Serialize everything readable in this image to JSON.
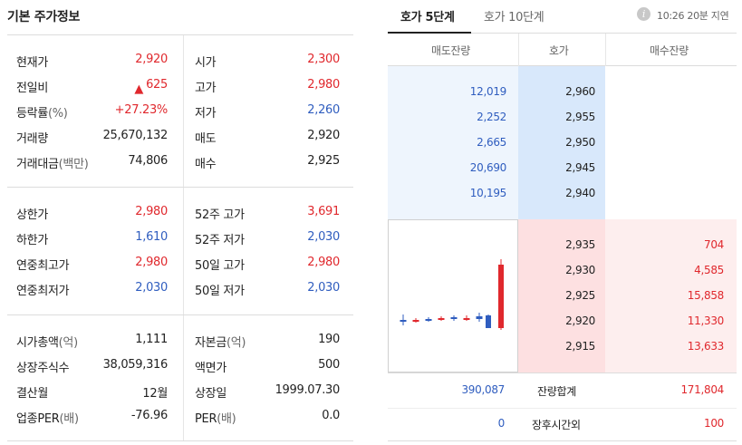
{
  "basic": {
    "title": "기본 주가정보",
    "block1": [
      {
        "k1": "현재가",
        "k1_sub": "",
        "v1": "2,920",
        "c1": "red",
        "k2": "시가",
        "v2": "2,300",
        "c2": "red"
      },
      {
        "k1": "전일비",
        "k1_sub": "",
        "v1": "625",
        "c1": "red",
        "arrow": "▲",
        "k2": "고가",
        "v2": "2,980",
        "c2": "red"
      },
      {
        "k1": "등락률",
        "k1_sub": "(%)",
        "v1": "+27.23%",
        "c1": "red",
        "k2": "저가",
        "v2": "2,260",
        "c2": "blue"
      },
      {
        "k1": "거래량",
        "k1_sub": "",
        "v1": "25,670,132",
        "c1": "black",
        "k2": "매도",
        "v2": "2,920",
        "c2": "black"
      },
      {
        "k1": "거래대금",
        "k1_sub": "(백만)",
        "v1": "74,806",
        "c1": "black",
        "k2": "매수",
        "v2": "2,925",
        "c2": "black"
      }
    ],
    "block2": [
      {
        "k1": "상한가",
        "k1_sub": "",
        "v1": "2,980",
        "c1": "red",
        "k2": "52주 고가",
        "v2": "3,691",
        "c2": "red"
      },
      {
        "k1": "하한가",
        "k1_sub": "",
        "v1": "1,610",
        "c1": "blue",
        "k2": "52주 저가",
        "v2": "2,030",
        "c2": "blue"
      },
      {
        "k1": "연중최고가",
        "k1_sub": "",
        "v1": "2,980",
        "c1": "red",
        "k2": "50일 고가",
        "v2": "2,980",
        "c2": "red"
      },
      {
        "k1": "연중최저가",
        "k1_sub": "",
        "v1": "2,030",
        "c1": "blue",
        "k2": "50일 저가",
        "v2": "2,030",
        "c2": "blue"
      }
    ],
    "block3": [
      {
        "k1": "시가총액",
        "k1_sub": "(억)",
        "v1": "1,111",
        "c1": "black",
        "k2": "자본금",
        "k2_sub": "(억)",
        "v2": "190",
        "c2": "black"
      },
      {
        "k1": "상장주식수",
        "k1_sub": "",
        "v1": "38,059,316",
        "c1": "black",
        "k2": "액면가",
        "k2_sub": "",
        "v2": "500",
        "c2": "black"
      },
      {
        "k1": "결산월",
        "k1_sub": "",
        "v1": "12월",
        "c1": "black",
        "k2": "상장일",
        "k2_sub": "",
        "v2": "1999.07.30",
        "c2": "black"
      },
      {
        "k1": "업종PER",
        "k1_sub": "(배)",
        "v1": "-76.96",
        "c1": "black",
        "k2": "PER",
        "k2_sub": "(배)",
        "v2": "0.0",
        "c2": "black"
      }
    ]
  },
  "orderbook": {
    "tabs": [
      "호가 5단계",
      "호가 10단계"
    ],
    "info_icon": "info-icon",
    "delay": "10:26 20분 지연",
    "headers": {
      "sell": "매도잔량",
      "price": "호가",
      "buy": "매수잔량"
    },
    "asks": [
      {
        "volume": "12,019",
        "price": "2,960"
      },
      {
        "volume": "2,252",
        "price": "2,955"
      },
      {
        "volume": "2,665",
        "price": "2,950"
      },
      {
        "volume": "20,690",
        "price": "2,945"
      },
      {
        "volume": "10,195",
        "price": "2,940"
      }
    ],
    "bids": [
      {
        "price": "2,935",
        "volume": "704"
      },
      {
        "price": "2,930",
        "volume": "4,585"
      },
      {
        "price": "2,925",
        "volume": "15,858"
      },
      {
        "price": "2,920",
        "volume": "11,330"
      },
      {
        "price": "2,915",
        "volume": "13,633"
      }
    ],
    "total": {
      "sell": "390,087",
      "label": "잔량합계",
      "buy": "171,804"
    },
    "after_hours": {
      "sell": "0",
      "label": "장후시간외",
      "buy": "100"
    }
  },
  "mini_chart": {
    "colors": {
      "up": "#e0282d",
      "down": "#2f5dbf"
    },
    "candles": [
      {
        "dir": "down"
      },
      {
        "dir": "up"
      },
      {
        "dir": "down"
      },
      {
        "dir": "up"
      },
      {
        "dir": "down"
      },
      {
        "dir": "up"
      },
      {
        "dir": "down"
      },
      {
        "dir": "down"
      },
      {
        "dir": "up"
      }
    ]
  }
}
